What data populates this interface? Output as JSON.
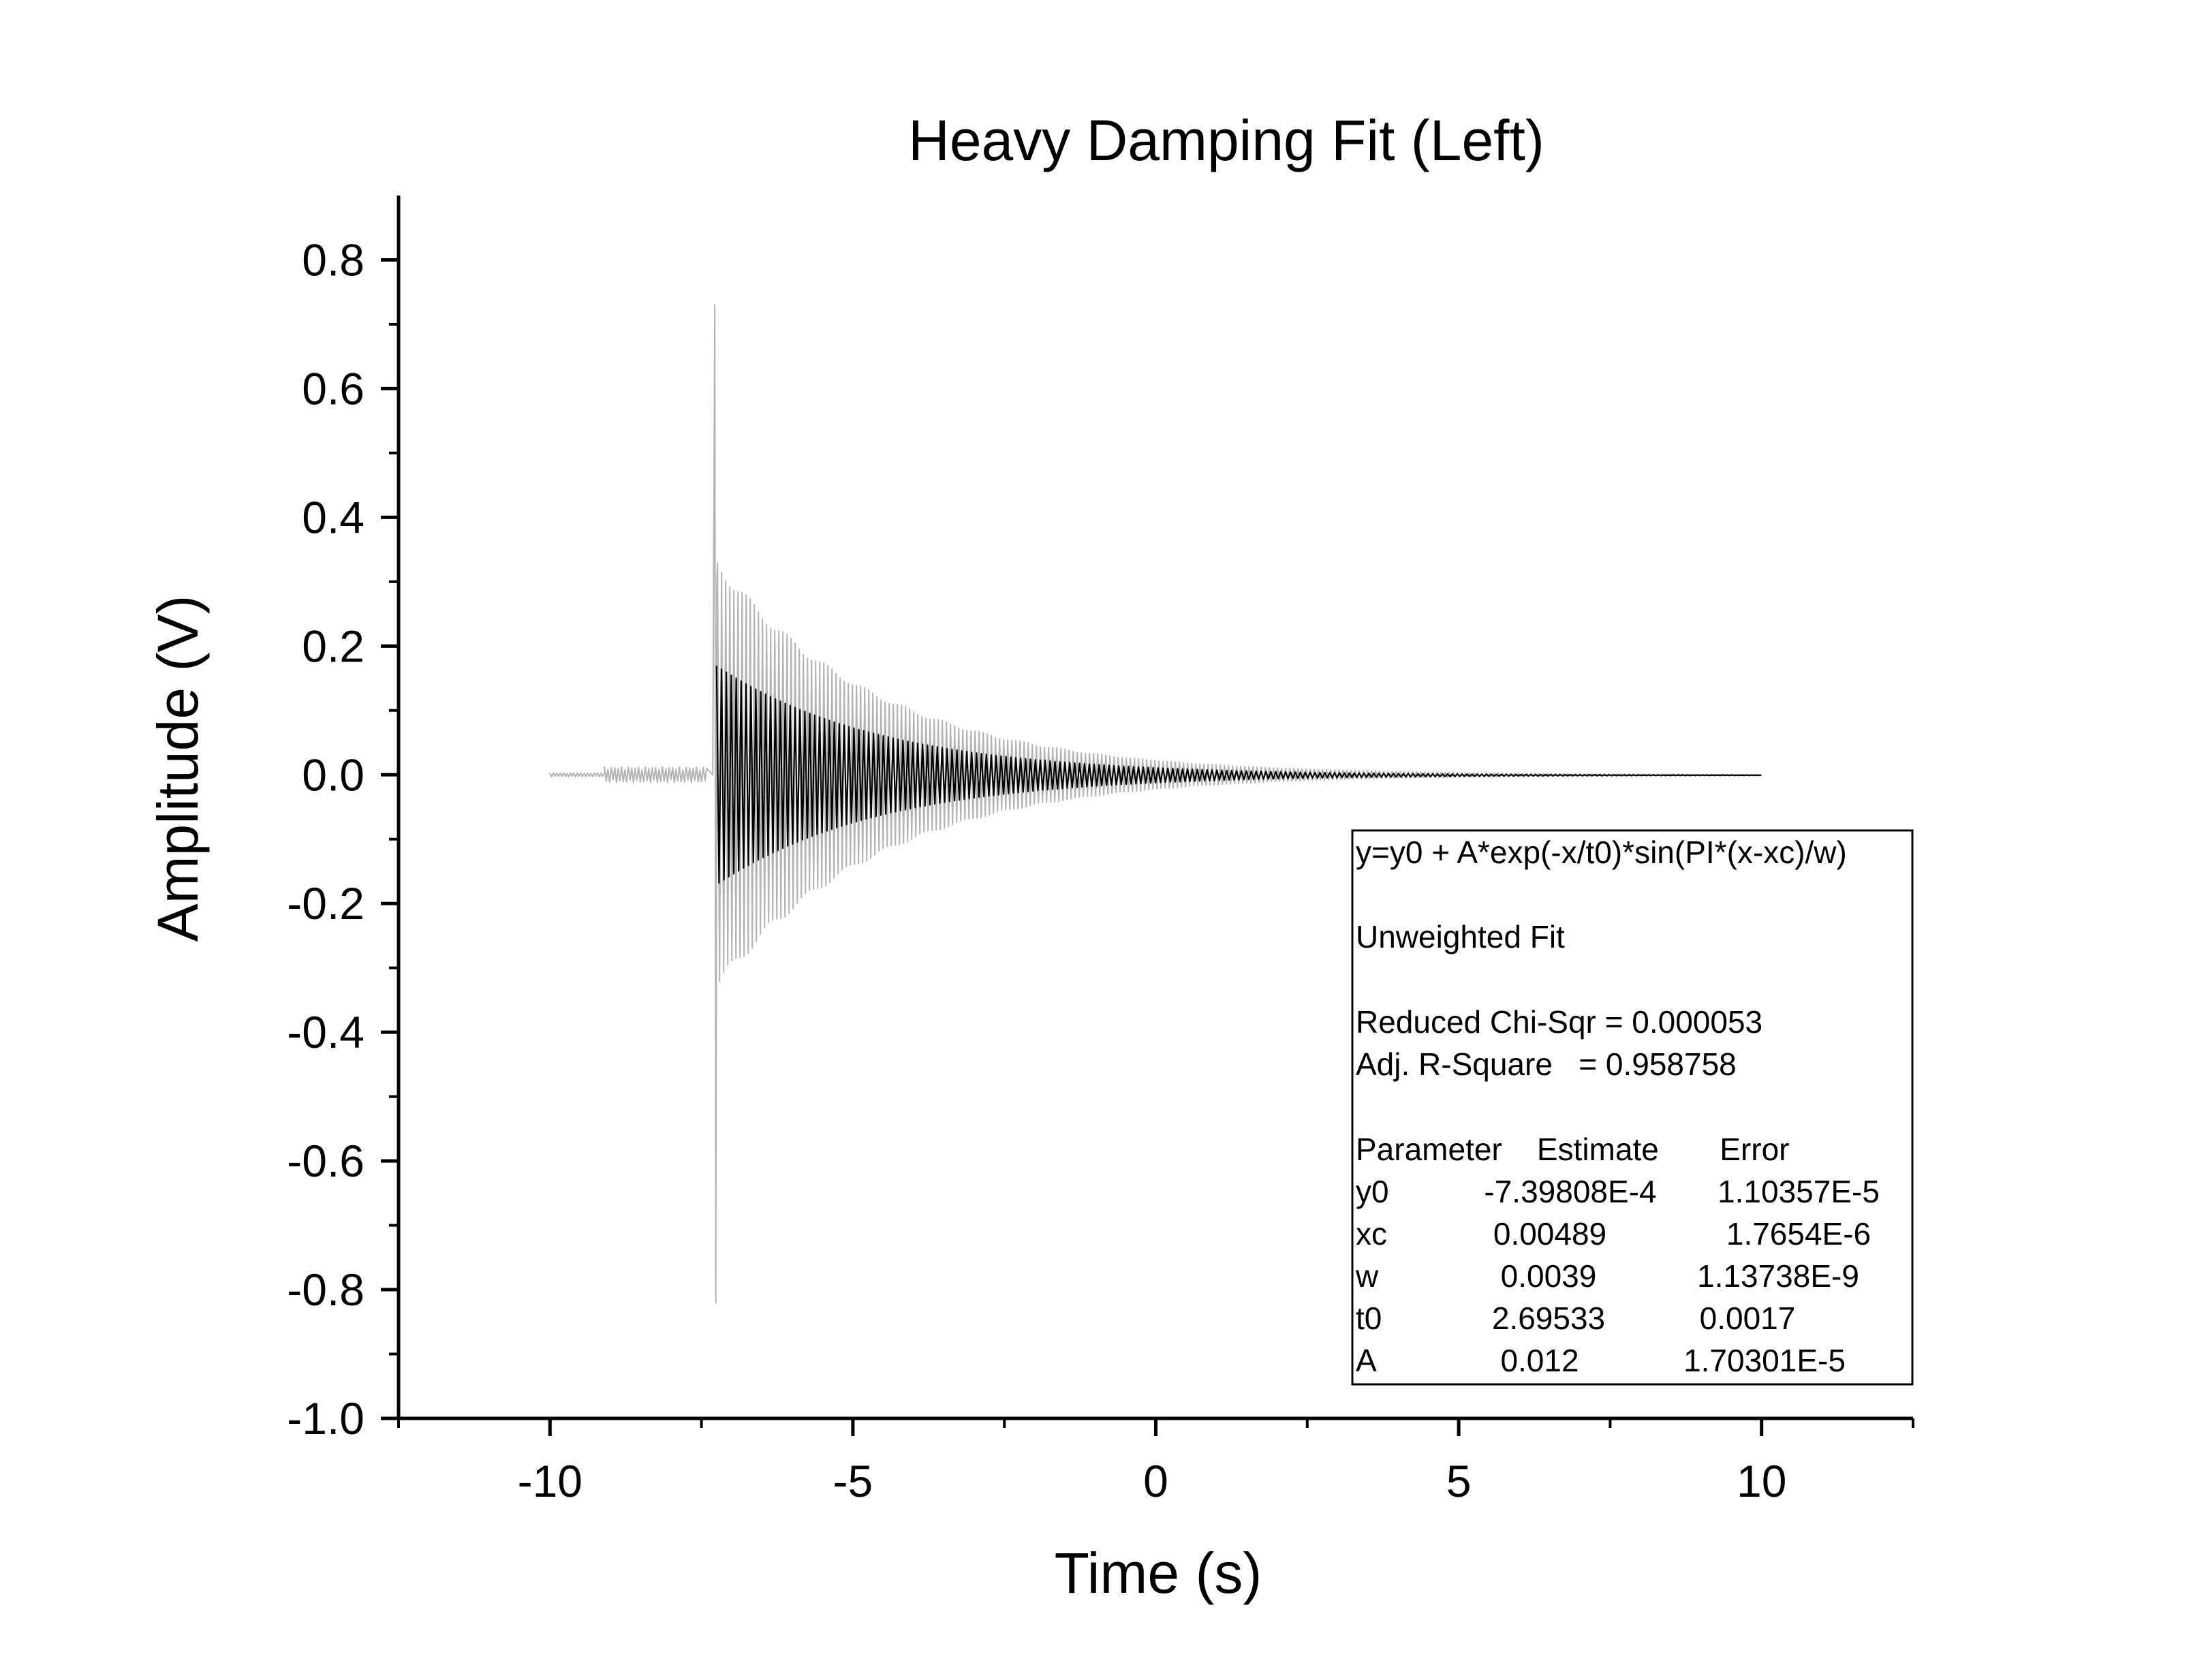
{
  "chart_data": {
    "type": "line",
    "title": "Heavy Damping Fit (Left)",
    "xlabel": "Time (s)",
    "ylabel": "Amplitude (V)",
    "xlim": [
      -12.5,
      12.5
    ],
    "ylim": [
      -1.0,
      0.9
    ],
    "x_ticks": [
      -10,
      -5,
      0,
      5,
      10
    ],
    "x_tick_labels": [
      "-10",
      "-5",
      "0",
      "5",
      "10"
    ],
    "y_ticks": [
      -1.0,
      -0.8,
      -0.6,
      -0.4,
      -0.2,
      0.0,
      0.2,
      0.4,
      0.6,
      0.8
    ],
    "y_tick_labels": [
      "-1.0",
      "-0.8",
      "-0.6",
      "-0.4",
      "-0.2",
      "0.0",
      "0.2",
      "0.4",
      "0.6",
      "0.8"
    ],
    "grid": false,
    "series": [
      {
        "role": "data",
        "color": "#b3b3b3",
        "x_range": [
          -10,
          10
        ],
        "pre_trigger_noise": [
          {
            "x": [
              -10.0,
              -9.1
            ],
            "amplitude": 0.003
          },
          {
            "x": [
              -9.1,
              -7.4
            ],
            "amplitude": 0.012
          }
        ],
        "impulse_x": -7.28,
        "impulse_max": 0.73,
        "impulse_min": -0.82,
        "envelope_start": 0.34,
        "envelope_t0": 2.69533
      },
      {
        "role": "fit",
        "color": "#000000",
        "function": "y=y0 + A*exp(-x/t0)*sin(PI*(x-xc)/w)",
        "x_range": [
          -7.25,
          10
        ],
        "y0": -0.000739808,
        "t0": 2.69533,
        "envelope_start": 0.17
      }
    ]
  },
  "stats_box": {
    "lines": [
      "y=y0 + A*exp(-x/t0)*sin(PI*(x-xc)/w)",
      "",
      "Unweighted Fit",
      "",
      "Reduced Chi-Sqr = 0.000053",
      "Adj. R-Square   = 0.958758",
      "",
      "Parameter    Estimate       Error"
    ],
    "params": [
      {
        "name": "y0",
        "estimate": "-7.39808E-4",
        "error": "1.10357E-5"
      },
      {
        "name": "xc",
        "estimate": "0.00489",
        "error": "1.7654E-6"
      },
      {
        "name": "w",
        "estimate": "0.0039",
        "error": "1.13738E-9"
      },
      {
        "name": "t0",
        "estimate": "2.69533",
        "error": "0.0017"
      },
      {
        "name": "A",
        "estimate": "0.012",
        "error": "1.70301E-5"
      }
    ]
  }
}
